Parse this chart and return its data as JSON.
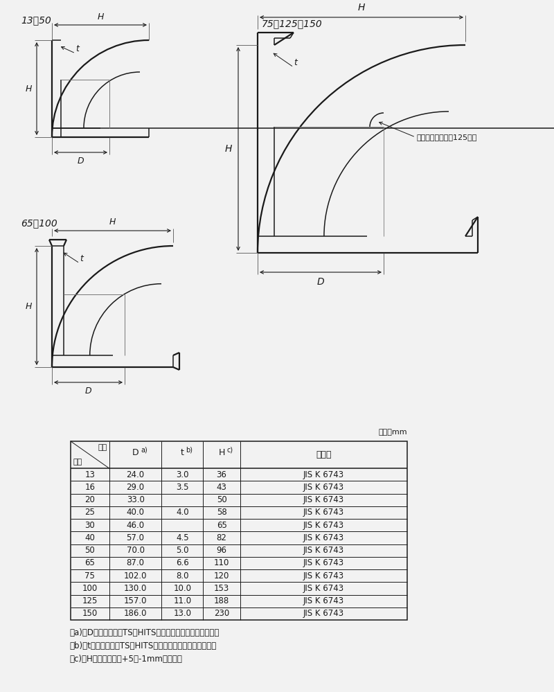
{
  "bg_color": "#f2f2f2",
  "line_color": "#1a1a1a",
  "title_13_50": "13～50",
  "title_65_100": "65・100",
  "title_75_125_150": "75・125・150",
  "unit_label": "単位：mm",
  "corner_rib_note": "コーナーリブは、125のみ",
  "col_headers_0a": "記号",
  "col_headers_0b": "呼径",
  "col_header_D": "D",
  "col_header_Da": "a)",
  "col_header_t": "t",
  "col_header_tb": "b)",
  "col_header_H": "H",
  "col_header_Hc": "c)",
  "col_header_spec": "規　格",
  "table_data": [
    [
      "13",
      "24.0",
      "3.0",
      "36",
      "JIS K 6743"
    ],
    [
      "16",
      "29.0",
      "3.5",
      "43",
      "JIS K 6743"
    ],
    [
      "20",
      "33.0",
      "",
      "50",
      "JIS K 6743"
    ],
    [
      "25",
      "40.0",
      "4.0",
      "58",
      "JIS K 6743"
    ],
    [
      "30",
      "46.0",
      "",
      "65",
      "JIS K 6743"
    ],
    [
      "40",
      "57.0",
      "4.5",
      "82",
      "JIS K 6743"
    ],
    [
      "50",
      "70.0",
      "5.0",
      "96",
      "JIS K 6743"
    ],
    [
      "65",
      "87.0",
      "6.6",
      "110",
      "JIS K 6743"
    ],
    [
      "75",
      "102.0",
      "8.0",
      "120",
      "JIS K 6743"
    ],
    [
      "100",
      "130.0",
      "10.0",
      "153",
      "JIS K 6743"
    ],
    [
      "125",
      "157.0",
      "11.0",
      "188",
      "JIS K 6743"
    ],
    [
      "150",
      "186.0",
      "13.0",
      "230",
      "JIS K 6743"
    ]
  ],
  "note_a": "注a)　Dの許容差は、TS・HITS継手受口共通寸法図による。",
  "note_b": "注b)　tの許容差は、TS・HITS継手受口共通寸法図による。",
  "note_c": "注c)　Hの許容差は、+5／-1mmとする。"
}
